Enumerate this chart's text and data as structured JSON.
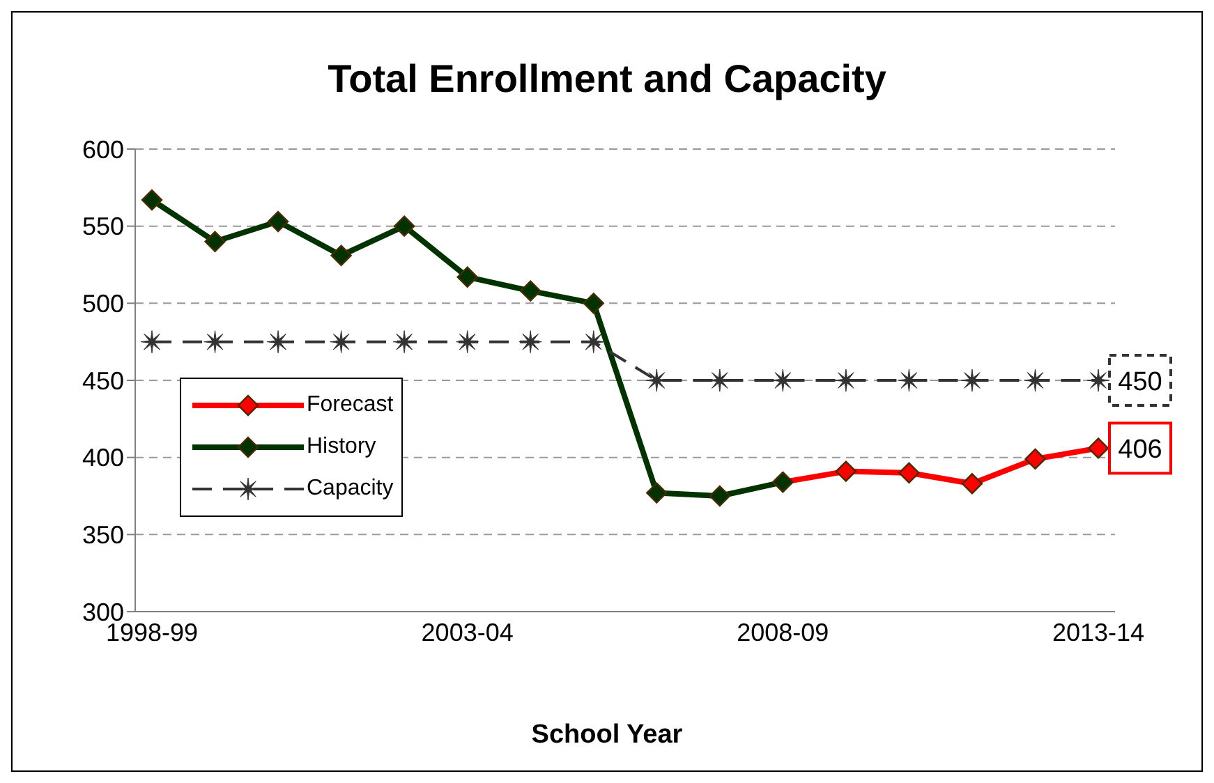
{
  "chart_data": {
    "type": "line",
    "title": "Total Enrollment and Capacity",
    "xlabel": "School Year",
    "categories": [
      "1998-99",
      null,
      null,
      null,
      null,
      "2003-04",
      null,
      null,
      null,
      null,
      "2008-09",
      null,
      null,
      null,
      null,
      "2013-14"
    ],
    "series": [
      {
        "name": "Forecast",
        "color": "#ff0000",
        "marker": "diamond",
        "line_style": "solid",
        "values": [
          null,
          null,
          null,
          null,
          null,
          null,
          null,
          null,
          null,
          null,
          384,
          391,
          390,
          383,
          399,
          406
        ],
        "value_labels": [
          null,
          null,
          null,
          null,
          null,
          null,
          null,
          null,
          null,
          null,
          null,
          null,
          null,
          null,
          null,
          "406"
        ]
      },
      {
        "name": "History",
        "color": "#003300",
        "marker": "diamond",
        "line_style": "solid",
        "values": [
          567,
          540,
          553,
          531,
          550,
          517,
          508,
          500,
          377,
          375,
          384,
          null,
          null,
          null,
          null,
          null
        ]
      },
      {
        "name": "Capacity",
        "color": "#333333",
        "marker": "star",
        "line_style": "dashed",
        "values": [
          475,
          475,
          475,
          475,
          475,
          475,
          475,
          475,
          450,
          450,
          450,
          450,
          450,
          450,
          450,
          450
        ],
        "value_labels": [
          null,
          null,
          null,
          null,
          null,
          null,
          null,
          null,
          null,
          null,
          null,
          null,
          null,
          null,
          null,
          "450"
        ]
      }
    ],
    "ylim": [
      300,
      600
    ],
    "yticks": [
      300,
      350,
      400,
      450,
      500,
      550,
      600
    ],
    "grid": "y",
    "legend": "bottom left"
  }
}
